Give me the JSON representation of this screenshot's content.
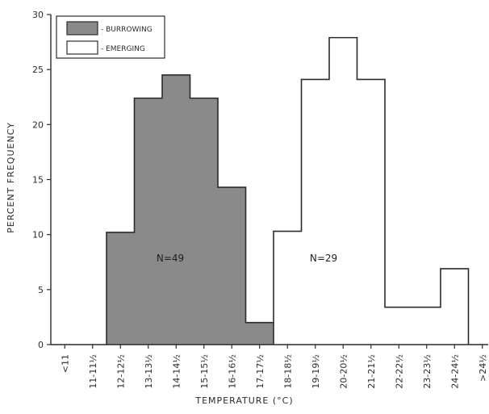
{
  "chart_data": {
    "type": "histogram-step",
    "xlabel": "TEMPERATURE (°C)",
    "ylabel": "PERCENT FREQUENCY",
    "ylim": [
      0,
      30
    ],
    "yticks": [
      0,
      5,
      10,
      15,
      20,
      25,
      30
    ],
    "categories": [
      "<11",
      "11-11½",
      "12-12½",
      "13-13½",
      "14-14½",
      "15-15½",
      "16-16½",
      "17-17½",
      "18-18½",
      "19-19½",
      "20-20½",
      "21-21½",
      "22-22½",
      "23-23½",
      "24-24½",
      ">24½"
    ],
    "series": [
      {
        "name": "BURROWING",
        "fill": "#8a8a8a",
        "values": [
          0,
          0,
          10.2,
          22.4,
          24.5,
          22.4,
          14.3,
          2.0,
          2.0,
          0,
          2.0,
          0,
          0,
          0,
          0,
          0
        ],
        "n_label": "N=49"
      },
      {
        "name": "EMERGING",
        "fill": "#ffffff",
        "values": [
          0,
          0,
          0,
          0,
          0,
          0,
          0,
          0,
          10.3,
          24.1,
          27.9,
          24.1,
          3.4,
          3.4,
          6.9,
          0
        ],
        "n_label": "N=29"
      }
    ],
    "legend": [
      {
        "label": "- BURROWING",
        "fill": "#8a8a8a"
      },
      {
        "label": "- EMERGING",
        "fill": "#ffffff"
      }
    ],
    "legend_position": "top-left",
    "grid": false
  }
}
